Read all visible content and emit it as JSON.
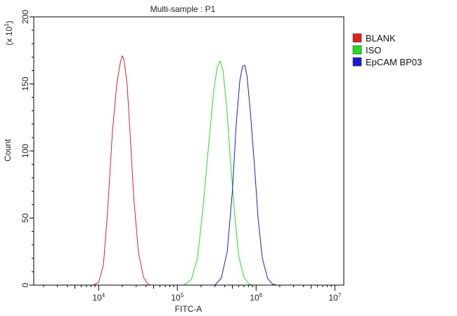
{
  "chart_data": {
    "type": "line",
    "title": "Multi-sample : P1",
    "xlabel": "FITC-A",
    "ylabel": "Count",
    "y_multiplier": "(x 10",
    "y_multiplier_exp": "1",
    "y_multiplier_close": ")",
    "x_scale": "log",
    "xlim": [
      1500,
      13000000
    ],
    "ylim": [
      0,
      200
    ],
    "x_ticks": [
      {
        "base": "10",
        "exp": "4",
        "value": 10000
      },
      {
        "base": "10",
        "exp": "5",
        "value": 100000
      },
      {
        "base": "10",
        "exp": "6",
        "value": 1000000
      },
      {
        "base": "10",
        "exp": "7",
        "value": 10000000
      }
    ],
    "y_ticks": [
      {
        "label": "0",
        "value": 0
      },
      {
        "label": "50",
        "value": 50
      },
      {
        "label": "100",
        "value": 100
      },
      {
        "label": "150",
        "value": 150
      },
      {
        "label": "200",
        "value": 200
      }
    ],
    "grid": false,
    "legend_position": "right",
    "series": [
      {
        "name": "BLANK",
        "color": "#e02020",
        "x": [
          8500,
          10000,
          11500,
          13000,
          15000,
          17000,
          19000,
          20000,
          21000,
          23000,
          25000,
          28000,
          32000,
          37000,
          42000,
          45000
        ],
        "y": [
          0,
          2,
          15,
          55,
          115,
          150,
          167,
          171,
          168,
          150,
          115,
          65,
          25,
          6,
          1,
          0
        ]
      },
      {
        "name": "ISO",
        "color": "#22dd22",
        "x": [
          120000,
          150000,
          180000,
          210000,
          250000,
          290000,
          320000,
          350000,
          380000,
          420000,
          470000,
          530000,
          600000,
          700000,
          800000,
          900000
        ],
        "y": [
          0,
          4,
          20,
          55,
          105,
          145,
          162,
          167,
          160,
          135,
          95,
          55,
          22,
          6,
          1,
          0
        ]
      },
      {
        "name": "EpCAM BP03",
        "color": "#1a1ad8",
        "x": [
          300000,
          360000,
          430000,
          500000,
          560000,
          620000,
          670000,
          720000,
          770000,
          850000,
          950000,
          1060000,
          1200000,
          1400000,
          1600000,
          1800000
        ],
        "y": [
          0,
          5,
          25,
          70,
          120,
          152,
          163,
          164,
          155,
          128,
          90,
          50,
          20,
          5,
          1,
          0
        ]
      }
    ]
  }
}
